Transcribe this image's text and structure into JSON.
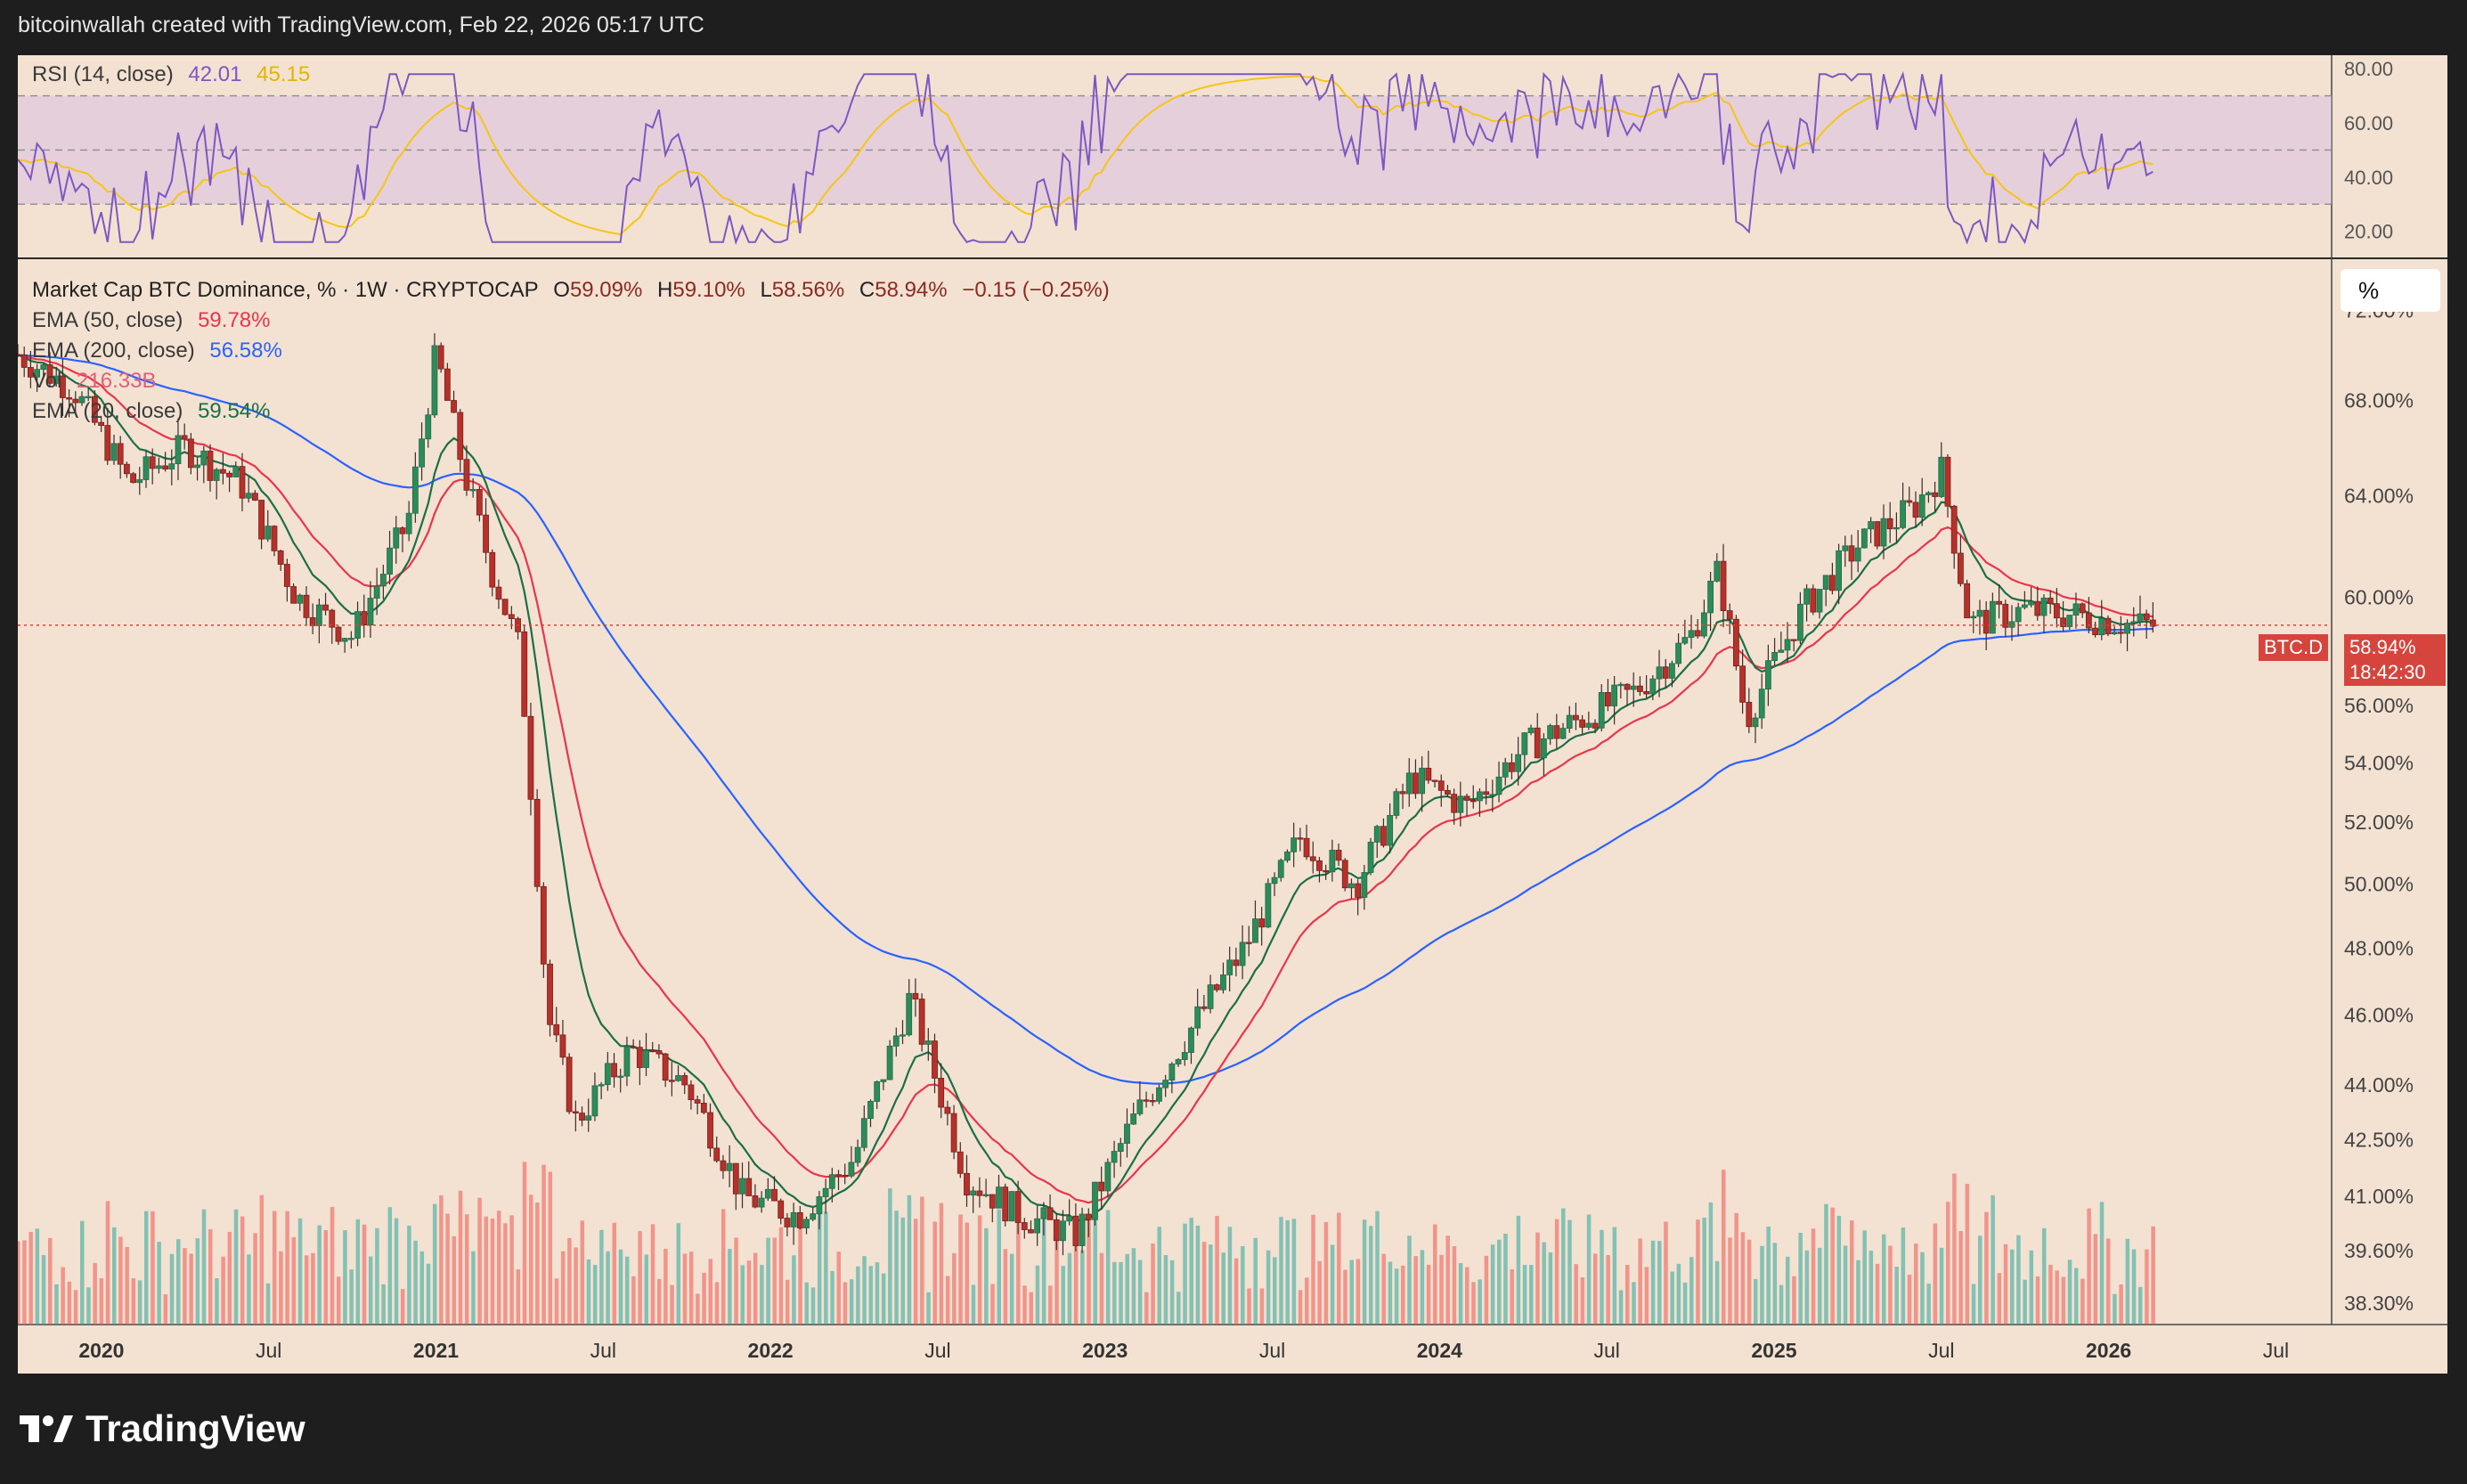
{
  "header": {
    "credit": "bitcoinwallah created with TradingView.com, Feb 22, 2026 05:17 UTC"
  },
  "rsi_pane": {
    "label": "RSI (14, close)",
    "value": "42.01",
    "ma_value": "45.15",
    "ticks": [
      "80.00",
      "60.00",
      "40.00",
      "20.00"
    ],
    "colors": {
      "rsi": "#7e57c2",
      "ma": "#f5c518",
      "band": "#d9bfe0"
    }
  },
  "main_pane": {
    "title": "Market Cap BTC Dominance, % · 1W · CRYPTOCAP",
    "ohlc": {
      "o_label": "O",
      "o": "59.09%",
      "h_label": "H",
      "h": "59.10%",
      "l_label": "L",
      "l": "58.56%",
      "c_label": "C",
      "c": "58.94%",
      "change": "−0.15 (−0.25%)"
    },
    "indicators": [
      {
        "label": "EMA (50, close)",
        "value": "59.78%",
        "color": "#e8364a"
      },
      {
        "label": "EMA (200, close)",
        "value": "56.58%",
        "color": "#2962ff"
      },
      {
        "label": "Vol",
        "value": "216.33B",
        "color": "#e0607a"
      },
      {
        "label": "EMA (20, close)",
        "value": "59.54%",
        "color": "#1b6e46"
      }
    ],
    "price_ticks": [
      "72.00%",
      "68.00%",
      "64.00%",
      "60.00%",
      "56.00%",
      "54.00%",
      "52.00%",
      "50.00%",
      "48.00%",
      "46.00%",
      "44.00%",
      "42.50%",
      "41.00%",
      "39.60%",
      "38.30%"
    ],
    "price_tag": {
      "symbol": "BTC.D",
      "value": "58.94%",
      "countdown": "18:42:30"
    },
    "scale_button": "%",
    "time_ticks": [
      "2020",
      "Jul",
      "2021",
      "Jul",
      "2022",
      "Jul",
      "2023",
      "Jul",
      "2024",
      "Jul",
      "2025",
      "Jul",
      "2026",
      "Jul"
    ],
    "colors": {
      "up": "#26a69a",
      "down": "#ef5350",
      "background": "#f3e2d2"
    }
  },
  "chart_data": {
    "type": "line",
    "title": "Market Cap BTC Dominance, % · 1W · CRYPTOCAP",
    "x_start": "2019-10",
    "x_end": "2026-02",
    "y_scale": "log",
    "ylim": [
      38.0,
      74.0
    ],
    "series": [
      {
        "name": "BTC Dominance (close)",
        "x": [
          "2019-10",
          "2019-12",
          "2020-02",
          "2020-04",
          "2020-06",
          "2020-08",
          "2020-10",
          "2020-12",
          "2021-01",
          "2021-02",
          "2021-03",
          "2021-04",
          "2021-05",
          "2021-06",
          "2021-08",
          "2021-10",
          "2021-12",
          "2022-02",
          "2022-04",
          "2022-06",
          "2022-08",
          "2022-10",
          "2022-12",
          "2023-02",
          "2023-04",
          "2023-06",
          "2023-08",
          "2023-10",
          "2023-12",
          "2024-02",
          "2024-04",
          "2024-06",
          "2024-08",
          "2024-10",
          "2024-11",
          "2024-12",
          "2025-02",
          "2025-04",
          "2025-06",
          "2025-07",
          "2025-08",
          "2025-10",
          "2025-12",
          "2026-02"
        ],
        "y": [
          70.0,
          68.5,
          64.5,
          66.0,
          64.5,
          60.0,
          58.5,
          63.0,
          70.0,
          65.0,
          61.0,
          58.0,
          46.0,
          43.0,
          45.0,
          44.0,
          41.0,
          40.5,
          42.0,
          46.5,
          41.5,
          40.5,
          40.0,
          43.0,
          45.5,
          48.0,
          51.5,
          50.0,
          53.5,
          52.5,
          54.5,
          55.5,
          56.5,
          58.5,
          61.0,
          55.5,
          59.5,
          62.0,
          63.5,
          65.0,
          59.0,
          59.5,
          59.3,
          58.94
        ]
      },
      {
        "name": "EMA (20, close)",
        "values_last": 59.54
      },
      {
        "name": "EMA (50, close)",
        "values_last": 59.78
      },
      {
        "name": "EMA (200, close)",
        "values_last": 56.58
      }
    ],
    "rsi": {
      "name": "RSI (14, close)",
      "last": 42.01,
      "ma_last": 45.15,
      "ylim": [
        10,
        85
      ],
      "bands": [
        30,
        50,
        70
      ]
    },
    "volume_last": "216.33B",
    "grid": false,
    "legend": "top-left"
  }
}
